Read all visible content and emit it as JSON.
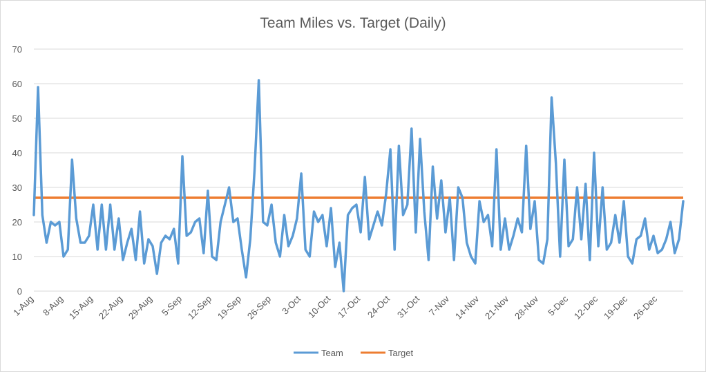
{
  "chart_data": {
    "type": "line",
    "title": "Team Miles vs. Target (Daily)",
    "xlabel": "",
    "ylabel": "",
    "ylim": [
      0,
      70
    ],
    "yticks": [
      0,
      10,
      20,
      30,
      40,
      50,
      60,
      70
    ],
    "grid": true,
    "legend_position": "bottom",
    "tick_labels": [
      "1-Aug",
      "8-Aug",
      "15-Aug",
      "22-Aug",
      "29-Aug",
      "5-Sep",
      "12-Sep",
      "19-Sep",
      "26-Sep",
      "3-Oct",
      "10-Oct",
      "17-Oct",
      "24-Oct",
      "31-Oct",
      "7-Nov",
      "14-Nov",
      "21-Nov",
      "28-Nov",
      "5-Dec",
      "12-Dec",
      "19-Dec",
      "26-Dec"
    ],
    "tick_interval_days": 7,
    "series": [
      {
        "name": "Team",
        "color": "#5b9bd5",
        "values": [
          22,
          59,
          22,
          14,
          20,
          19,
          20,
          10,
          12,
          38,
          21,
          14,
          14,
          16,
          25,
          12,
          25,
          12,
          25,
          12,
          21,
          9,
          14,
          18,
          9,
          23,
          8,
          15,
          13,
          5,
          14,
          16,
          15,
          18,
          8,
          39,
          16,
          17,
          20,
          21,
          11,
          29,
          10,
          9,
          20,
          25,
          30,
          20,
          21,
          12,
          4,
          15,
          35,
          61,
          20,
          19,
          25,
          14,
          10,
          22,
          13,
          16,
          21,
          34,
          12,
          10,
          23,
          20,
          22,
          13,
          24,
          7,
          14,
          0,
          22,
          24,
          25,
          17,
          33,
          15,
          19,
          23,
          19,
          28,
          41,
          12,
          42,
          22,
          25,
          47,
          17,
          44,
          23,
          9,
          36,
          21,
          32,
          17,
          27,
          9,
          30,
          27,
          14,
          10,
          8,
          26,
          20,
          22,
          13,
          41,
          12,
          21,
          12,
          16,
          21,
          17,
          42,
          18,
          26,
          9,
          8,
          15,
          56,
          37,
          10,
          38,
          13,
          15,
          30,
          15,
          31,
          9,
          40,
          13,
          30,
          12,
          14,
          22,
          14,
          26,
          10,
          8,
          15,
          16,
          21,
          12,
          16,
          11,
          12,
          15,
          20,
          11,
          15,
          26
        ],
        "start": "1-Aug"
      },
      {
        "name": "Target",
        "color": "#ed7d31",
        "values": [
          27
        ],
        "constant": true
      }
    ]
  }
}
